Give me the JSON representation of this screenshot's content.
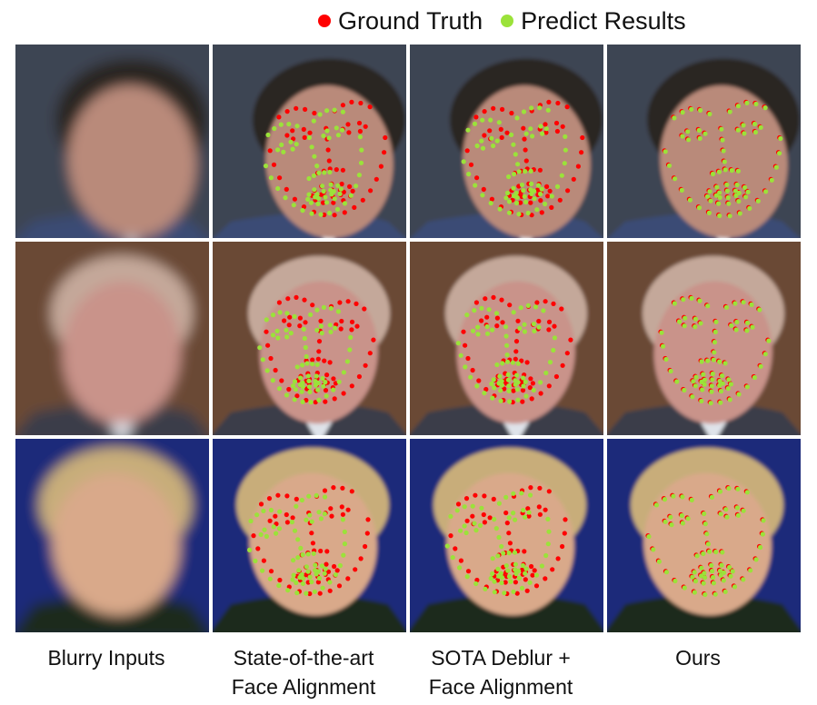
{
  "legend": {
    "ground_truth_label": "Ground Truth",
    "predict_label": "Predict Results",
    "ground_truth_color": "#ff0000",
    "predict_color": "#9be23a"
  },
  "columns": [
    {
      "line1": "Blurry Inputs",
      "line2": ""
    },
    {
      "line1": "State-of-the-art",
      "line2": "Face Alignment"
    },
    {
      "line1": "SOTA Deblur +",
      "line2": "Face Alignment"
    },
    {
      "line1": "Ours",
      "line2": ""
    }
  ],
  "rows": [
    {
      "subject": "man-glasses",
      "background": "#3d4452",
      "skin": "#b98a7a",
      "hair": "#2a2522",
      "clothes": "#3b4b75"
    },
    {
      "subject": "older-man",
      "background": "#6b4a35",
      "skin": "#c9938a",
      "hair": "#c4a89a",
      "clothes": "#3a3d49"
    },
    {
      "subject": "woman",
      "background": "#1d2a7a",
      "skin": "#d9a98a",
      "hair": "#c8ad7a",
      "clothes": "#1e2a1e"
    }
  ]
}
